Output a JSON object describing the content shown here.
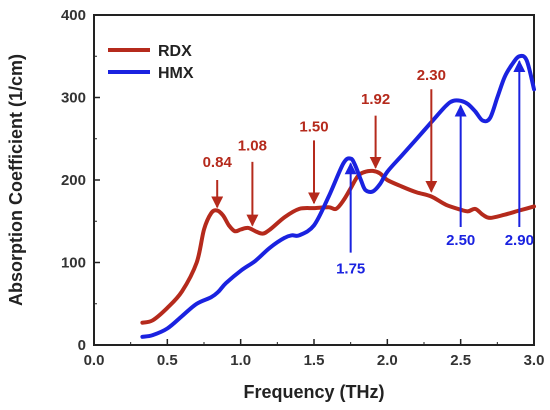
{
  "colors": {
    "rdx": "#b52a1c",
    "hmx": "#1a22e0",
    "axis": "#222222"
  },
  "chart_data": {
    "type": "line",
    "title": "",
    "xlabel": "Frequency (THz)",
    "ylabel": "Absorption Coefficient (1/cm)",
    "xlim": [
      0.0,
      3.0
    ],
    "ylim": [
      0,
      400
    ],
    "xticks": [
      "0.0",
      "0.5",
      "1.0",
      "1.5",
      "2.0",
      "2.5",
      "3.0"
    ],
    "yticks": [
      "0",
      "100",
      "200",
      "300",
      "400"
    ],
    "grid": false,
    "legend_position": "top-left",
    "series": [
      {
        "name": "RDX",
        "color": "#b52a1c",
        "x": [
          0.33,
          0.4,
          0.5,
          0.6,
          0.7,
          0.75,
          0.8,
          0.84,
          0.88,
          0.92,
          0.96,
          1.0,
          1.05,
          1.1,
          1.15,
          1.2,
          1.3,
          1.4,
          1.5,
          1.6,
          1.65,
          1.7,
          1.75,
          1.8,
          1.85,
          1.9,
          1.95,
          2.0,
          2.1,
          2.2,
          2.3,
          2.4,
          2.5,
          2.55,
          2.6,
          2.65,
          2.7,
          2.8,
          2.9,
          3.0
        ],
        "y": [
          27,
          30,
          45,
          65,
          100,
          140,
          160,
          163,
          157,
          145,
          138,
          140,
          142,
          138,
          135,
          140,
          155,
          165,
          166,
          167,
          165,
          175,
          190,
          205,
          210,
          211,
          208,
          200,
          192,
          185,
          180,
          170,
          164,
          162,
          165,
          158,
          154,
          158,
          163,
          168
        ]
      },
      {
        "name": "HMX",
        "color": "#1a22e0",
        "x": [
          0.33,
          0.4,
          0.5,
          0.6,
          0.7,
          0.8,
          0.85,
          0.9,
          1.0,
          1.1,
          1.2,
          1.3,
          1.35,
          1.4,
          1.5,
          1.6,
          1.7,
          1.75,
          1.78,
          1.82,
          1.85,
          1.9,
          1.95,
          2.0,
          2.1,
          2.2,
          2.3,
          2.4,
          2.45,
          2.5,
          2.55,
          2.6,
          2.65,
          2.7,
          2.75,
          2.8,
          2.85,
          2.9,
          2.95,
          3.0
        ],
        "y": [
          10,
          12,
          20,
          35,
          50,
          58,
          65,
          75,
          90,
          102,
          118,
          130,
          133,
          133,
          145,
          180,
          220,
          226,
          218,
          200,
          188,
          186,
          195,
          210,
          230,
          250,
          270,
          290,
          296,
          296,
          292,
          283,
          272,
          275,
          300,
          325,
          340,
          350,
          345,
          310
        ]
      }
    ],
    "annotations": [
      {
        "text": "0.84",
        "series": "RDX",
        "x": 0.84,
        "label_y": 222,
        "arrow_from": 200,
        "arrow_to": 167
      },
      {
        "text": "1.08",
        "series": "RDX",
        "x": 1.08,
        "label_y": 242,
        "arrow_from": 222,
        "arrow_to": 145
      },
      {
        "text": "1.50",
        "series": "RDX",
        "x": 1.5,
        "label_y": 265,
        "arrow_from": 248,
        "arrow_to": 172
      },
      {
        "text": "1.92",
        "series": "RDX",
        "x": 1.92,
        "label_y": 298,
        "arrow_from": 278,
        "arrow_to": 215
      },
      {
        "text": "2.30",
        "series": "RDX",
        "x": 2.3,
        "label_y": 327,
        "arrow_from": 310,
        "arrow_to": 186
      },
      {
        "text": "1.75",
        "series": "HMX",
        "x": 1.75,
        "label_y": 93,
        "arrow_from": 112,
        "arrow_to": 220
      },
      {
        "text": "2.50",
        "series": "HMX",
        "x": 2.5,
        "label_y": 127,
        "arrow_from": 143,
        "arrow_to": 290
      },
      {
        "text": "2.90",
        "series": "HMX",
        "x": 2.9,
        "label_y": 127,
        "arrow_from": 143,
        "arrow_to": 344
      }
    ]
  }
}
